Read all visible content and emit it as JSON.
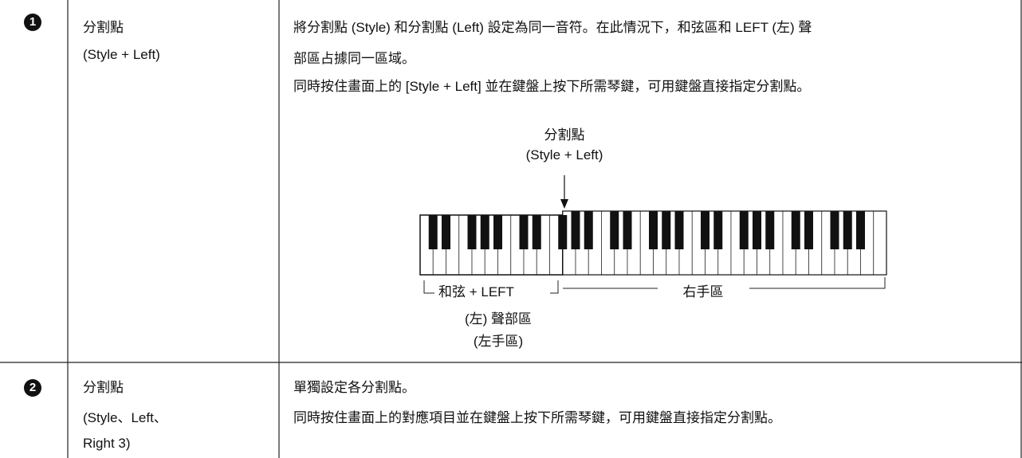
{
  "rows": [
    {
      "number": "1",
      "name": [
        "分割點",
        "(Style + Left)"
      ],
      "description": [
        "將分割點 (Style) 和分割點 (Left) 設定為同一音符。在此情況下，和弦區和 LEFT (左) 聲",
        "部區占據同一區域。",
        "同時按住畫面上的 [Style + Left] 並在鍵盤上按下所需琴鍵，可用鍵盤直接指定分割點。"
      ],
      "diagram": {
        "split_label": [
          "分割點",
          "(Style + Left)"
        ],
        "left_label": [
          "和弦 + LEFT",
          "(左) 聲部區",
          "(左手區)"
        ],
        "right_label": "右手區"
      }
    },
    {
      "number": "2",
      "name": [
        "分割點",
        "(Style、Left、",
        "Right 3)"
      ],
      "description": [
        "單獨設定各分割點。",
        "同時按住畫面上的對應項目並在鍵盤上按下所需琴鍵，可用鍵盤直接指定分割點。"
      ]
    }
  ]
}
